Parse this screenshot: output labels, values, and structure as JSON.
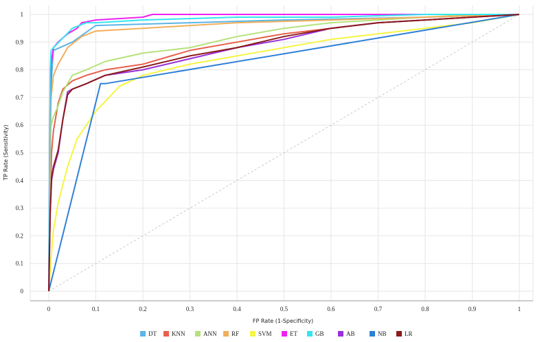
{
  "chart_data": {
    "type": "line",
    "xlabel": "FP Rate (1-Specificity)",
    "ylabel": "TP Rate (Sensitivity)",
    "xlim": [
      0,
      1
    ],
    "ylim": [
      0,
      1
    ],
    "x_ticks": [
      "0",
      "0.1",
      "0.2",
      "0.3",
      "0.4",
      "0.5",
      "0.6",
      "0.7",
      "0.8",
      "0.9",
      "1"
    ],
    "y_ticks": [
      "0",
      "0.1",
      "0.2",
      "0.3",
      "0.4",
      "0.5",
      "0.6",
      "0.7",
      "0.8",
      "0.9",
      "1"
    ],
    "grid": true,
    "legend_position": "bottom",
    "diagonal": {
      "x": [
        0,
        1
      ],
      "y": [
        0,
        1
      ],
      "color": "#c8c8c8"
    },
    "series": [
      {
        "name": "DT",
        "color": "#5bb5e6",
        "x": [
          0,
          0.005,
          0.01,
          0.05,
          0.1,
          0.3,
          0.5,
          0.8,
          1
        ],
        "y": [
          0,
          0.75,
          0.87,
          0.9,
          0.96,
          0.97,
          0.98,
          0.99,
          1
        ]
      },
      {
        "name": "KNN",
        "color": "#e8604c",
        "x": [
          0,
          0.003,
          0.006,
          0.01,
          0.02,
          0.03,
          0.05,
          0.08,
          0.12,
          0.2,
          0.3,
          0.4,
          0.5,
          0.6,
          0.7,
          0.8,
          0.9,
          1
        ],
        "y": [
          0,
          0.3,
          0.5,
          0.58,
          0.68,
          0.73,
          0.76,
          0.78,
          0.8,
          0.82,
          0.87,
          0.9,
          0.93,
          0.95,
          0.97,
          0.98,
          0.99,
          1
        ]
      },
      {
        "name": "ANN",
        "color": "#b5e27a",
        "x": [
          0,
          0.002,
          0.005,
          0.01,
          0.02,
          0.03,
          0.05,
          0.08,
          0.12,
          0.2,
          0.3,
          0.4,
          0.5,
          0.6,
          0.7,
          0.8,
          0.9,
          1
        ],
        "y": [
          0,
          0.55,
          0.6,
          0.63,
          0.67,
          0.72,
          0.78,
          0.8,
          0.83,
          0.86,
          0.88,
          0.92,
          0.95,
          0.97,
          0.98,
          0.99,
          1,
          1
        ]
      },
      {
        "name": "RF",
        "color": "#f2ae5c",
        "x": [
          0,
          0.005,
          0.01,
          0.02,
          0.04,
          0.07,
          0.1,
          0.2,
          0.4,
          0.6,
          0.8,
          1
        ],
        "y": [
          0,
          0.7,
          0.78,
          0.82,
          0.88,
          0.92,
          0.94,
          0.95,
          0.97,
          0.98,
          0.99,
          1
        ]
      },
      {
        "name": "SVM",
        "color": "#f5f542",
        "x": [
          0,
          0.005,
          0.01,
          0.02,
          0.04,
          0.06,
          0.1,
          0.15,
          0.2,
          0.3,
          0.4,
          0.5,
          0.6,
          0.7,
          0.8,
          0.9,
          1
        ],
        "y": [
          0,
          0.12,
          0.22,
          0.32,
          0.45,
          0.55,
          0.65,
          0.74,
          0.78,
          0.82,
          0.85,
          0.88,
          0.91,
          0.93,
          0.95,
          0.97,
          1
        ]
      },
      {
        "name": "ET",
        "color": "#ee22ee",
        "x": [
          0,
          0.002,
          0.005,
          0.01,
          0.02,
          0.04,
          0.06,
          0.07,
          0.1,
          0.2,
          0.22,
          0.4,
          0.6,
          0.8,
          1
        ],
        "y": [
          0,
          0.6,
          0.82,
          0.88,
          0.9,
          0.93,
          0.95,
          0.97,
          0.98,
          0.99,
          1,
          1,
          1,
          1,
          1
        ]
      },
      {
        "name": "GB",
        "color": "#33e5f0",
        "x": [
          0,
          0.003,
          0.005,
          0.01,
          0.05,
          0.08,
          0.1,
          0.2,
          0.4,
          0.6,
          0.8,
          1
        ],
        "y": [
          0,
          0.8,
          0.87,
          0.88,
          0.95,
          0.97,
          0.97,
          0.98,
          0.99,
          0.99,
          1,
          1
        ]
      },
      {
        "name": "AB",
        "color": "#9b30d9",
        "x": [
          0,
          0.003,
          0.006,
          0.01,
          0.02,
          0.03,
          0.04,
          0.05,
          0.08,
          0.12,
          0.2,
          0.3,
          0.4,
          0.5,
          0.6,
          0.7,
          0.8,
          0.9,
          1
        ],
        "y": [
          0,
          0.28,
          0.4,
          0.44,
          0.5,
          0.62,
          0.72,
          0.73,
          0.75,
          0.78,
          0.8,
          0.84,
          0.88,
          0.91,
          0.95,
          0.97,
          0.98,
          0.99,
          1
        ]
      },
      {
        "name": "NB",
        "color": "#2f80d8",
        "x": [
          0,
          0.11,
          0.12,
          1
        ],
        "y": [
          0,
          0.75,
          0.75,
          1
        ]
      },
      {
        "name": "LR",
        "color": "#8b1a1a",
        "x": [
          0,
          0.003,
          0.006,
          0.01,
          0.02,
          0.03,
          0.04,
          0.05,
          0.08,
          0.12,
          0.2,
          0.3,
          0.4,
          0.5,
          0.6,
          0.7,
          0.8,
          0.9,
          1
        ],
        "y": [
          0,
          0.29,
          0.41,
          0.45,
          0.51,
          0.62,
          0.71,
          0.73,
          0.75,
          0.78,
          0.81,
          0.85,
          0.88,
          0.92,
          0.95,
          0.97,
          0.98,
          0.99,
          1
        ]
      }
    ]
  }
}
